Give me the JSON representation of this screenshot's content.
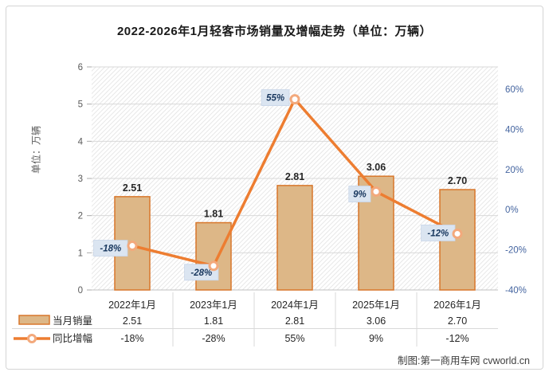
{
  "title": "2022-2026年1月轻客市场销量及增幅走势（单位：万辆）",
  "credit": "制图:第一商用车网 cvworld.cn",
  "chart_data": {
    "type": "bar+line combo with data table",
    "categories": [
      "2022年1月",
      "2023年1月",
      "2024年1月",
      "2025年1月",
      "2026年1月"
    ],
    "series": [
      {
        "name": "当月销量",
        "type": "bar",
        "axis": "left",
        "values": [
          2.51,
          1.81,
          2.81,
          3.06,
          2.7
        ],
        "labels": [
          "2.51",
          "1.81",
          "2.81",
          "3.06",
          "2.70"
        ]
      },
      {
        "name": "同比增幅",
        "type": "line",
        "axis": "right",
        "values": [
          -18,
          -28,
          55,
          9,
          -12
        ],
        "labels": [
          "-18%",
          "-28%",
          "55%",
          "9%",
          "-12%"
        ]
      }
    ],
    "left_axis": {
      "label": "单位：万辆",
      "min": 0,
      "max": 6,
      "ticks": [
        "0",
        "1",
        "2",
        "3",
        "4",
        "5",
        "6"
      ]
    },
    "right_axis": {
      "min": -40,
      "max": 60,
      "ticks": [
        "60%",
        "40%",
        "20%",
        "0%",
        "-20%",
        "-40%"
      ],
      "tick_values": [
        60,
        40,
        20,
        0,
        -20,
        -40
      ]
    },
    "grid": "horizontal gridlines on, hatched plot background",
    "legend_position": "table rows bottom-left",
    "colors": {
      "bar_fill": "#ddb787",
      "bar_border": "#d8772b",
      "line": "#ed7d31",
      "marker_ring": "#f3a97c",
      "label_box_bg": "#dbe5f1",
      "label_box_border": "#c7d5e8",
      "label_text": "#17365d",
      "right_axis_text": "#4565a0",
      "left_axis_text": "#595959",
      "table_text": "#262626",
      "grid": "#d9d9d9"
    }
  }
}
